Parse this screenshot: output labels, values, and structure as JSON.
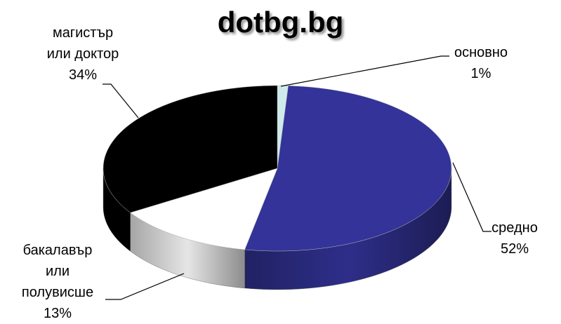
{
  "chart_data": {
    "type": "pie3d",
    "title": "dotbg.bg",
    "categories": [
      "основно",
      "средно",
      "бакалавър или полувисше",
      "магистър или доктор"
    ],
    "values": [
      1,
      52,
      13,
      34
    ],
    "value_labels": [
      "1%",
      "52%",
      "13%",
      "34%"
    ],
    "colors": [
      "#cfeaea",
      "#333399",
      "#ffffff",
      "#000000"
    ]
  }
}
